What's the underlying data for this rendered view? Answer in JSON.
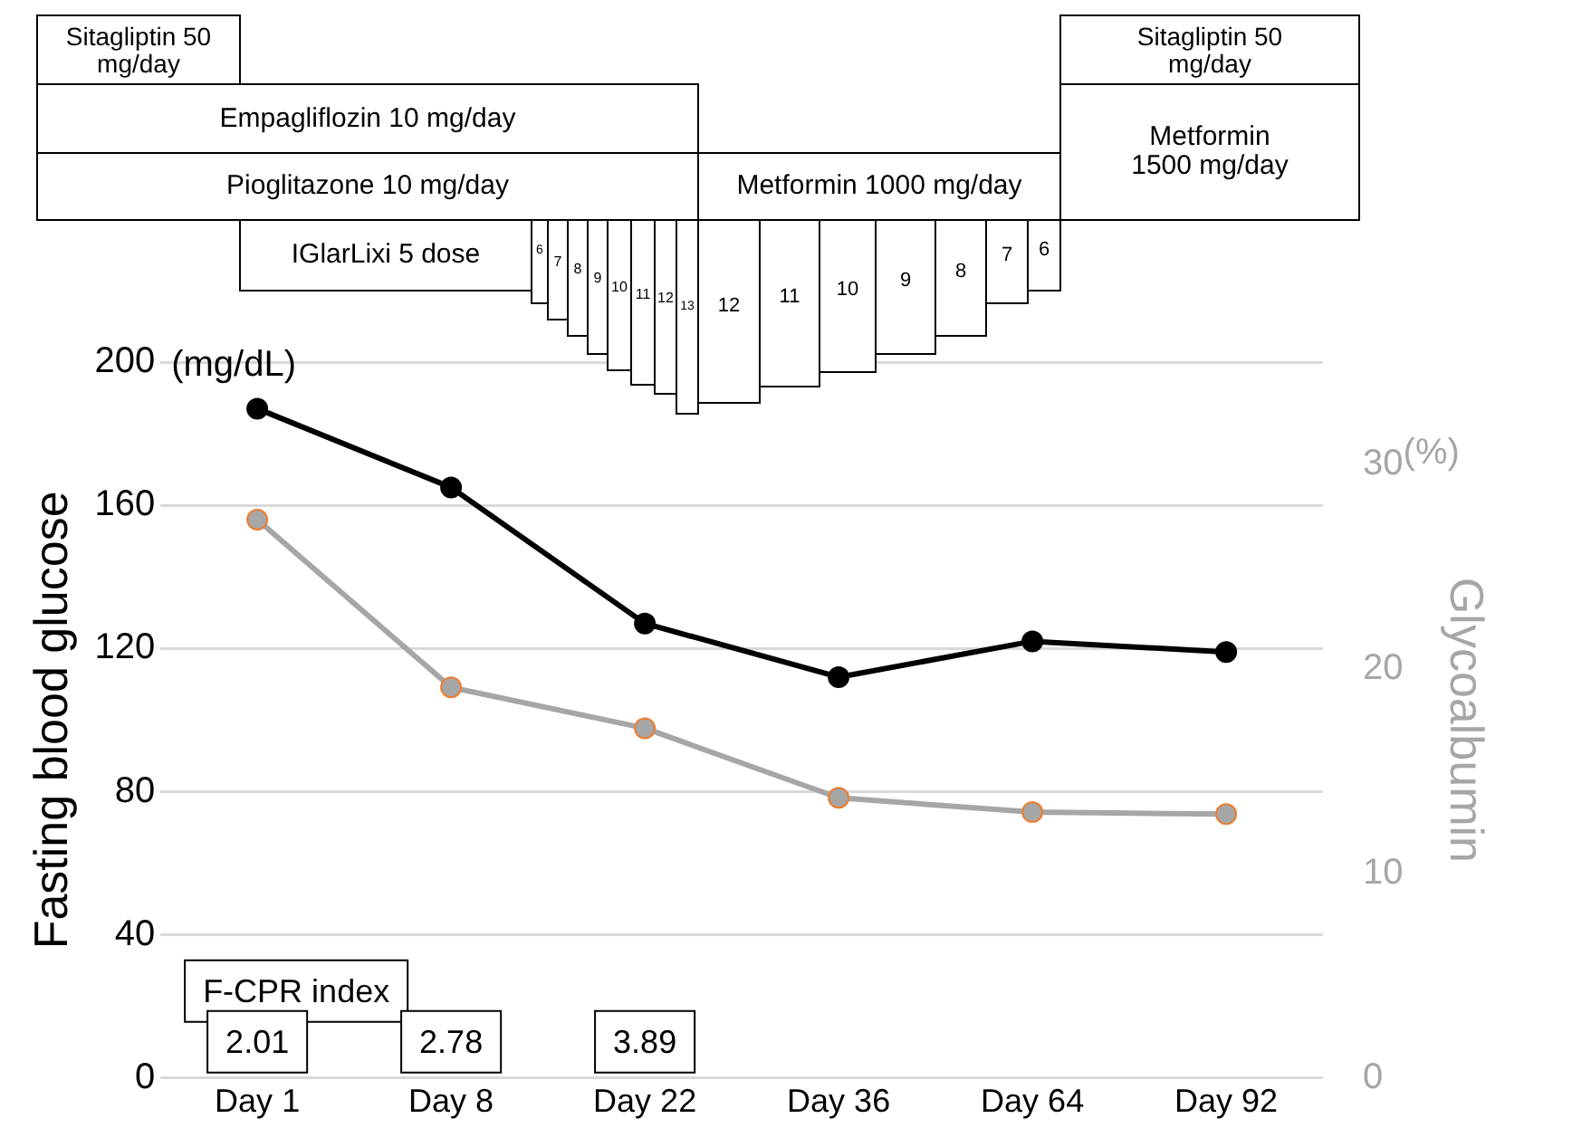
{
  "chart_data": {
    "type": "line",
    "xlabel": null,
    "ylabel": "Fasting blood glucose",
    "y2label": "Glycoalbumin",
    "categories": [
      "Day 1",
      "Day 8",
      "Day 22",
      "Day 36",
      "Day 64",
      "Day 92"
    ],
    "ylim": [
      0,
      200
    ],
    "yticks": [
      0,
      40,
      80,
      120,
      160,
      200
    ],
    "y2lim": [
      0,
      35
    ],
    "y2ticks": [
      0,
      10,
      20,
      30
    ],
    "series": [
      {
        "color": "#000000",
        "values": [
          187,
          165,
          127,
          112,
          122,
          119
        ]
      },
      {
        "color": "#a6a6a6",
        "axis": "y2",
        "values": [
          27.3,
          19.1,
          17.1,
          13.7,
          13.0,
          12.9
        ]
      }
    ],
    "marker": "circle",
    "line_style": "solid",
    "grid": "y",
    "legend": false,
    "annotations": [
      "(mg/dL)",
      "(%)",
      "Sitagliptin 50 mg/day",
      "Empagliflozin 10 mg/day",
      "Pioglitazone 10 mg/day",
      "Metformin 1000 mg/day",
      "Sitagliptin 50 mg/day",
      "Metformin 1500 mg/day",
      "IGlarLixi 5 dose",
      "6",
      "7",
      "8",
      "9",
      "10",
      "11",
      "12",
      "13",
      "12",
      "11",
      "10",
      "9",
      "8",
      "7",
      "6",
      "F-CPR index",
      "2.01",
      "2.78",
      "3.89"
    ]
  }
}
